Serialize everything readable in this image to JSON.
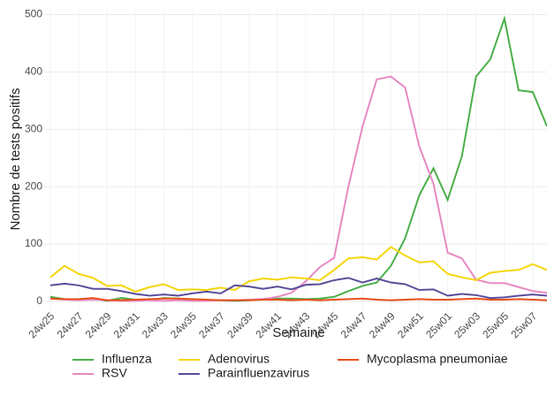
{
  "chart_data": {
    "type": "line",
    "y_label": "Nombre de tests positifs",
    "x_label": "Semaine",
    "categories": [
      "24w25",
      null,
      "24w27",
      null,
      "24w29",
      null,
      "24w31",
      null,
      "24w33",
      null,
      "24w35",
      null,
      "24w37",
      null,
      "24w39",
      null,
      "24w41",
      null,
      "24w43",
      null,
      "24w45",
      null,
      "24w47",
      null,
      "24w49",
      null,
      "24w51",
      null,
      "25w01",
      null,
      "25w03",
      null,
      "25w05",
      null,
      "25w07",
      null
    ],
    "series": [
      {
        "name": "Influenza",
        "color": "#4daf4a",
        "values": [
          8,
          4,
          3,
          5,
          1,
          6,
          3,
          2,
          6,
          5,
          3,
          2,
          2,
          1,
          2,
          4,
          5,
          5,
          4,
          5,
          8,
          18,
          27,
          33,
          62,
          110,
          185,
          232,
          177,
          253,
          392,
          422,
          493,
          368,
          365,
          305
        ]
      },
      {
        "name": "RSV",
        "color": "#e78ac3",
        "values": [
          5,
          3,
          2,
          3,
          2,
          1,
          1,
          2,
          1,
          2,
          1,
          1,
          2,
          2,
          3,
          4,
          8,
          15,
          35,
          60,
          76,
          200,
          305,
          387,
          392,
          373,
          270,
          205,
          85,
          75,
          38,
          32,
          32,
          25,
          18,
          15
        ]
      },
      {
        "name": "Adenovirus",
        "color": "#f5d60a",
        "values": [
          42,
          62,
          48,
          41,
          27,
          28,
          17,
          25,
          30,
          20,
          21,
          20,
          24,
          20,
          35,
          40,
          38,
          42,
          40,
          37,
          55,
          75,
          77,
          73,
          95,
          80,
          68,
          70,
          48,
          42,
          37,
          50,
          53,
          55,
          65,
          55
        ]
      },
      {
        "name": "Parainfluenzavirus",
        "color": "#5a4e9a",
        "values": [
          28,
          31,
          28,
          22,
          22,
          18,
          13,
          10,
          12,
          10,
          14,
          17,
          14,
          28,
          26,
          22,
          26,
          21,
          29,
          30,
          37,
          41,
          33,
          40,
          33,
          30,
          20,
          21,
          10,
          13,
          11,
          6,
          7,
          10,
          12,
          10
        ]
      },
      {
        "name": "Mycoplasma pneumoniae",
        "color": "#e8501c",
        "values": [
          5,
          4,
          4,
          6,
          2,
          2,
          3,
          4,
          5,
          5,
          4,
          3,
          2,
          2,
          2,
          3,
          3,
          2,
          3,
          2,
          3,
          4,
          5,
          3,
          2,
          3,
          4,
          3,
          3,
          4,
          5,
          3,
          3,
          4,
          3,
          2
        ]
      }
    ],
    "ylim": [
      -17,
      510
    ],
    "yticks": [
      0,
      100,
      200,
      300,
      400,
      500
    ],
    "grid": true
  }
}
